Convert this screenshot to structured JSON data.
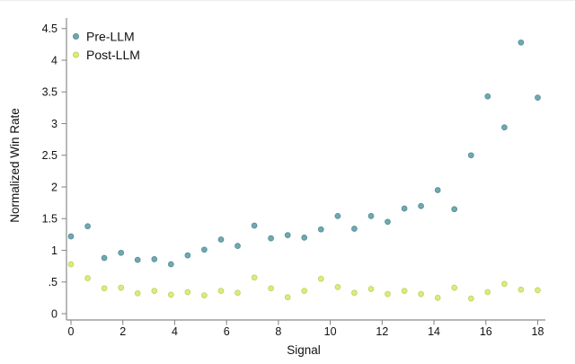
{
  "page": {
    "background": "#ffffff"
  },
  "colors": {
    "axis_line": "#8a8a8a",
    "tick_mark": "#8a8a8a",
    "text": "#111111"
  },
  "chart_data": {
    "type": "scatter",
    "title": "",
    "xlabel": "Signal",
    "ylabel": "Normalized Win Rate",
    "xlim": [
      -0.2,
      18.3
    ],
    "ylim": [
      0,
      4.5
    ],
    "grid": false,
    "x_tick_values": [
      0,
      2,
      4,
      6,
      8,
      10,
      12,
      14,
      16,
      18
    ],
    "x_tick_labels": [
      "0",
      "2",
      "4",
      "6",
      "8",
      "10",
      "12",
      "14",
      "16",
      "18"
    ],
    "y_tick_values": [
      0,
      0.5,
      1,
      1.5,
      2,
      2.5,
      3,
      3.5,
      4,
      4.5
    ],
    "y_tick_labels": [
      "0",
      ".5",
      "1",
      "1.5",
      "2",
      "2.5",
      "3",
      "3.5",
      "4",
      "4.5"
    ],
    "x": [
      0,
      0.643,
      1.286,
      1.929,
      2.571,
      3.214,
      3.857,
      4.5,
      5.143,
      5.786,
      6.429,
      7.071,
      7.714,
      8.357,
      9,
      9.643,
      10.286,
      10.929,
      11.571,
      12.214,
      12.857,
      13.5,
      14.143,
      14.786,
      15.429,
      16.071,
      16.714,
      17.357,
      18
    ],
    "series": [
      {
        "name": "Pre-LLM",
        "fill": "#72a8b1",
        "stroke": "#549099",
        "y": [
          1.22,
          1.38,
          0.88,
          0.96,
          0.85,
          0.86,
          0.78,
          0.92,
          1.01,
          1.17,
          1.07,
          1.39,
          1.19,
          1.24,
          1.2,
          1.33,
          1.54,
          1.34,
          1.54,
          1.45,
          1.66,
          1.7,
          1.95,
          1.65,
          2.5,
          3.43,
          2.94,
          4.28,
          3.41
        ]
      },
      {
        "name": "Post-LLM",
        "fill": "#dcea80",
        "stroke": "#c3d45c",
        "y": [
          0.78,
          0.56,
          0.4,
          0.41,
          0.32,
          0.36,
          0.3,
          0.34,
          0.29,
          0.36,
          0.33,
          0.57,
          0.4,
          0.26,
          0.36,
          0.55,
          0.42,
          0.33,
          0.39,
          0.31,
          0.36,
          0.31,
          0.25,
          0.41,
          0.24,
          0.34,
          0.47,
          0.38,
          0.37
        ]
      }
    ],
    "legend": {
      "position": "top-left"
    }
  }
}
